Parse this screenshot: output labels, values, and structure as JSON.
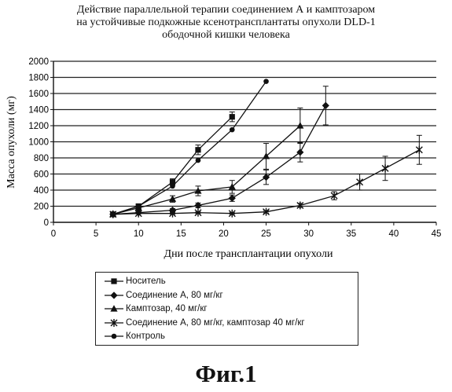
{
  "chart_data": {
    "type": "line",
    "title": [
      "Действие параллельной терапии соединением А и камптозаром",
      "на устойчивые подкожные ксенотрансплантаты опухоли DLD-1",
      "ободочной кишки человека"
    ],
    "xlabel": "Дни после трансплантации опухоли",
    "ylabel": "Масса опухоли (мг)",
    "xlim": [
      0,
      45
    ],
    "ylim": [
      0,
      2000
    ],
    "xticks": [
      0,
      5,
      10,
      15,
      20,
      25,
      30,
      35,
      40,
      45
    ],
    "yticks": [
      0,
      200,
      400,
      600,
      800,
      1000,
      1200,
      1400,
      1600,
      1800,
      2000
    ],
    "grid": "horizontal",
    "legend_position": "bottom",
    "series": [
      {
        "name": "Носитель",
        "marker": "square",
        "x": [
          7,
          10,
          14,
          17,
          21
        ],
        "y": [
          100,
          200,
          500,
          900,
          1310
        ],
        "err": [
          0,
          15,
          40,
          60,
          60
        ]
      },
      {
        "name": "Соединение А, 80 мг/кг",
        "marker": "diamond",
        "x": [
          7,
          10,
          14,
          17,
          21,
          25,
          29,
          32
        ],
        "y": [
          100,
          120,
          150,
          210,
          300,
          560,
          870,
          1450
        ],
        "err": [
          0,
          10,
          20,
          30,
          40,
          90,
          120,
          240
        ]
      },
      {
        "name": "Камптозар, 40 мг/кг",
        "marker": "triangle",
        "x": [
          7,
          10,
          14,
          17,
          21,
          25,
          29
        ],
        "y": [
          100,
          180,
          290,
          390,
          440,
          820,
          1200
        ],
        "err": [
          0,
          20,
          40,
          60,
          80,
          160,
          220
        ]
      },
      {
        "name": "Соединение А, 80 мг/кг, камптозар 40 мг/кг",
        "marker": "star",
        "x": [
          7,
          10,
          14,
          17,
          21,
          25,
          29,
          33,
          36,
          39,
          43
        ],
        "y": [
          100,
          110,
          110,
          120,
          110,
          130,
          210,
          330,
          500,
          670,
          900
        ],
        "err": [
          0,
          5,
          10,
          10,
          10,
          15,
          25,
          50,
          100,
          150,
          180
        ]
      },
      {
        "name": "Контроль",
        "marker": "circle",
        "x": [
          7,
          10,
          14,
          17,
          21,
          25
        ],
        "y": [
          100,
          200,
          450,
          770,
          1150,
          1750
        ],
        "err": [
          0,
          0,
          0,
          0,
          0,
          0
        ]
      }
    ]
  },
  "figure_caption": "Фиг.1"
}
